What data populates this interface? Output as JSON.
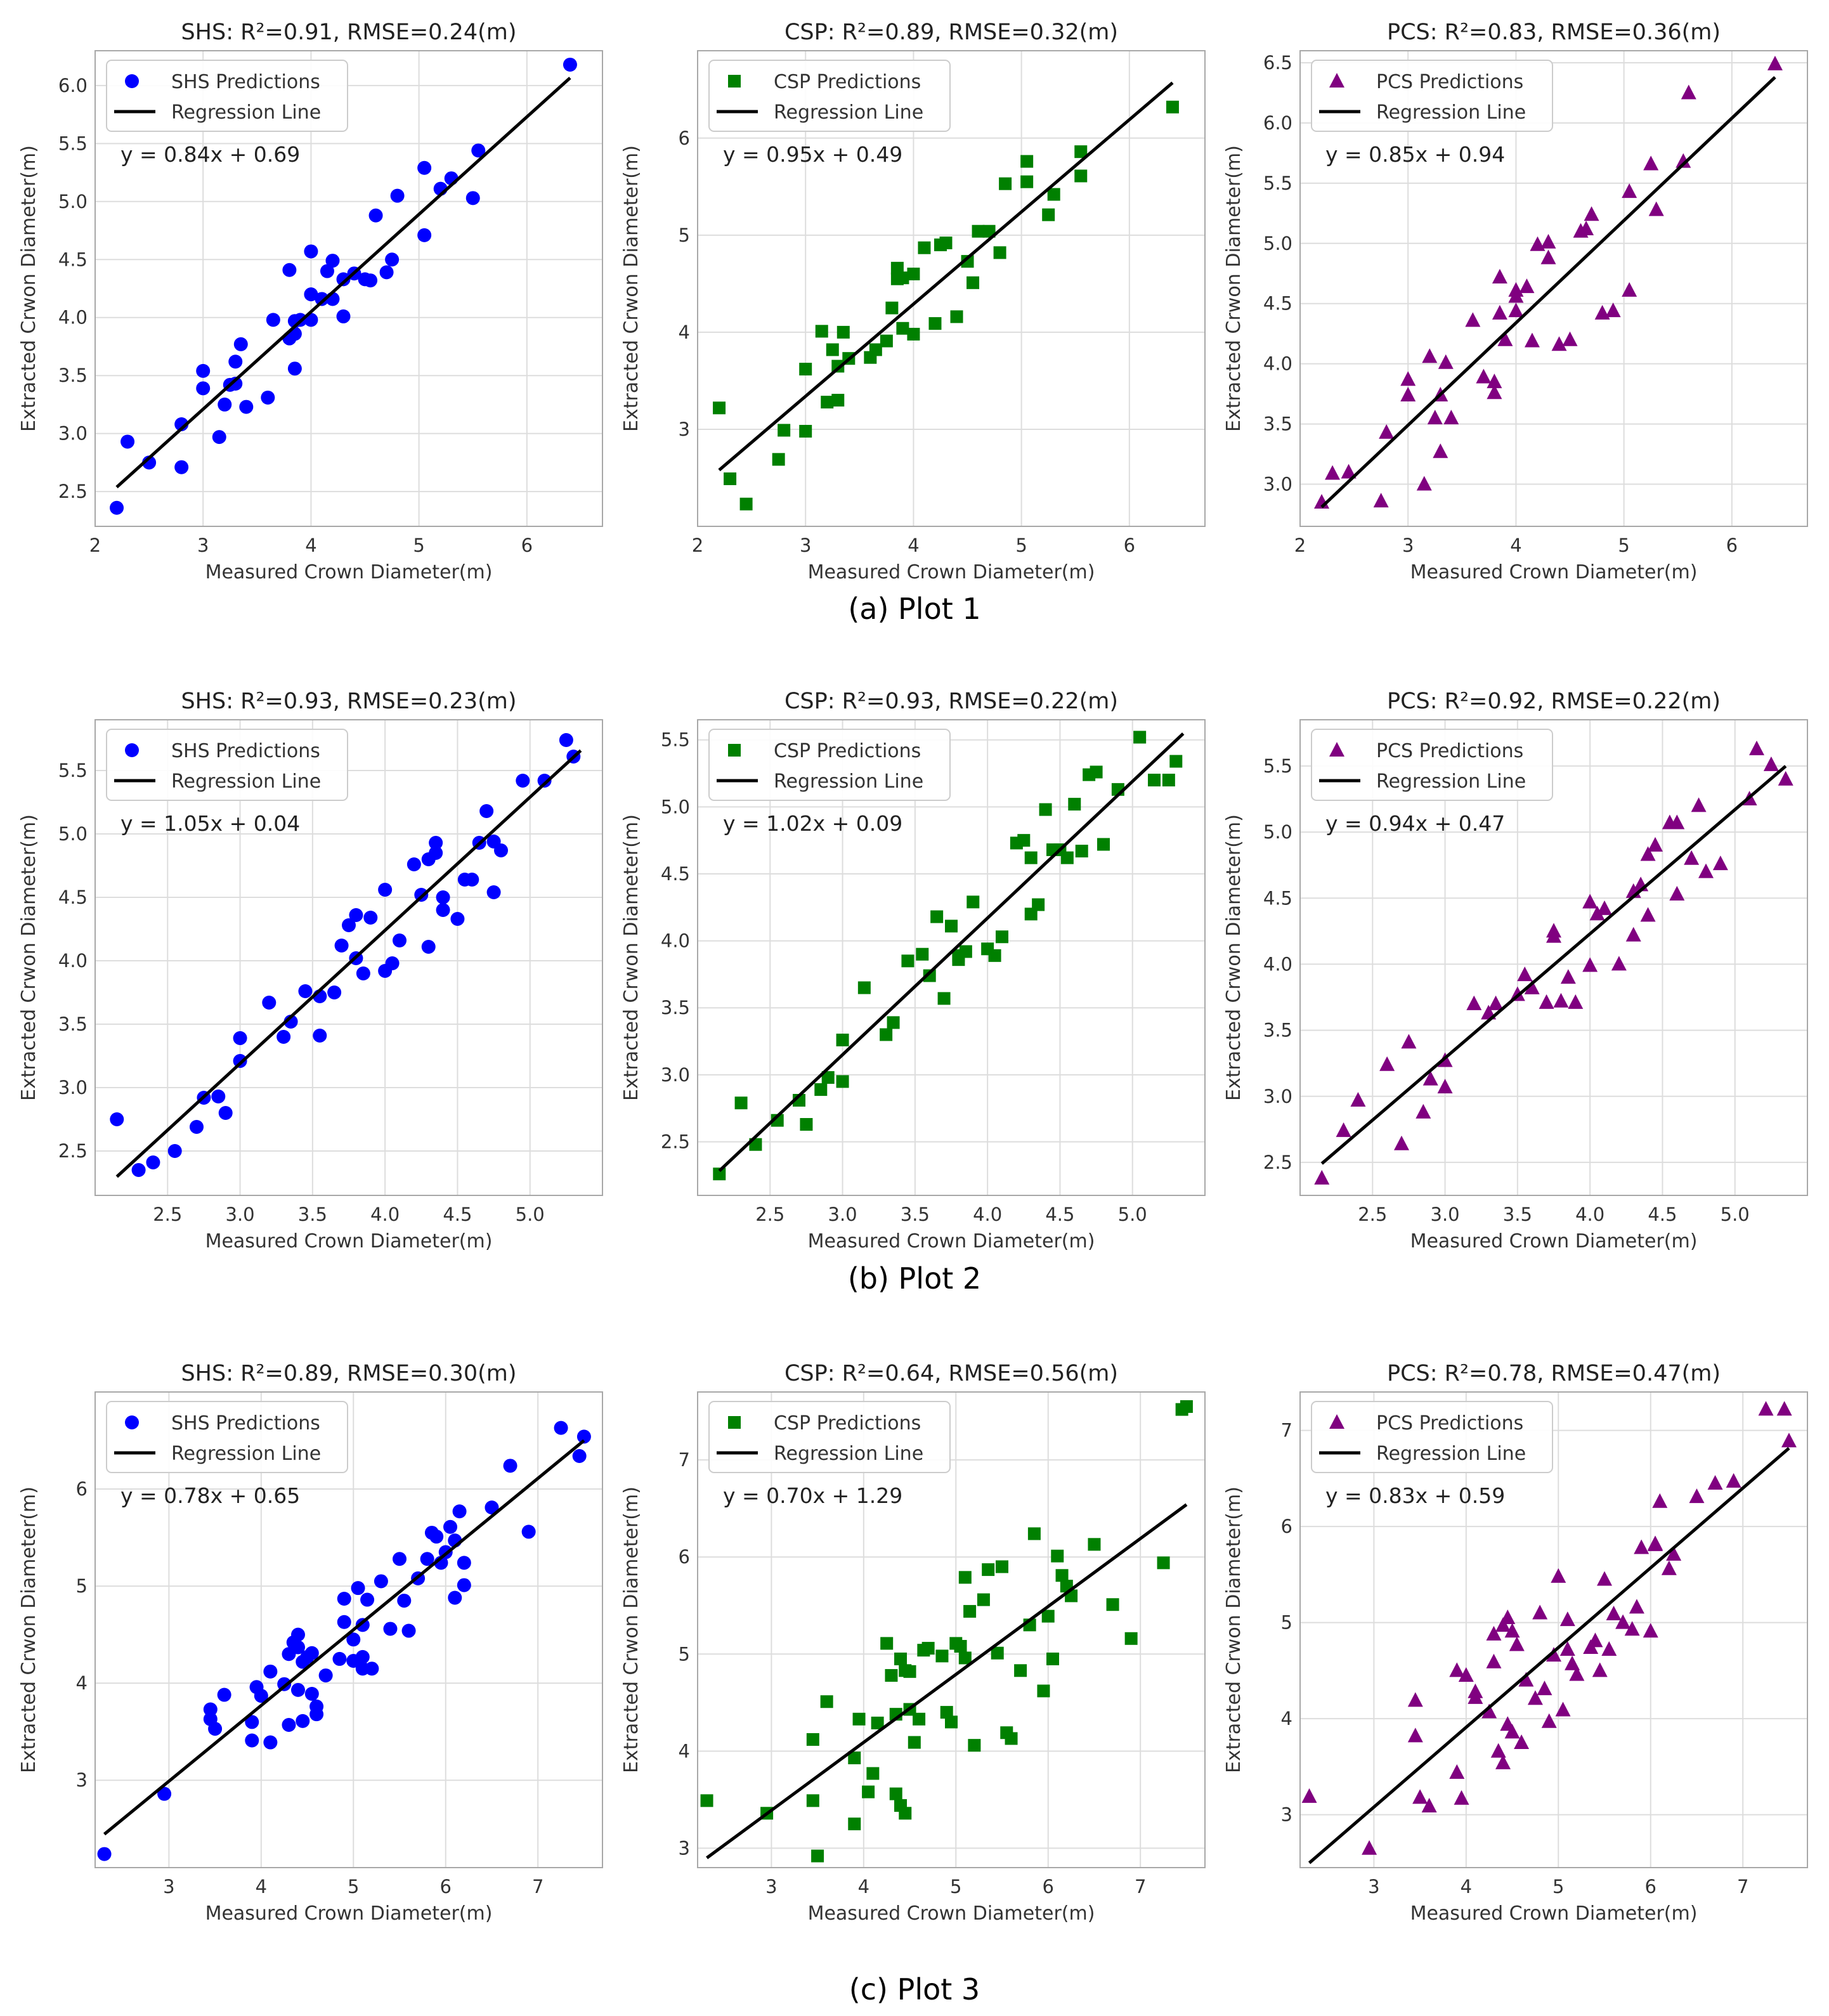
{
  "figure": {
    "axis_xlabel": "Measured Crown Diameter(m)",
    "axis_ylabel": "Extracted Crwon Diameter(m)",
    "regression_label": "Regression Line",
    "captions": [
      "(a) Plot 1",
      "(b) Plot 2",
      "(c) Plot 3"
    ]
  },
  "colors": {
    "SHS": "#0000ff",
    "CSP": "#008000",
    "PCS": "#800080",
    "line": "#000000",
    "grid": "#dddddd",
    "frame": "#a8a8a8"
  },
  "chart_data": [
    {
      "type": "scatter",
      "method": "SHS",
      "plot": 1,
      "title": "SHS: R²=0.91, RMSE=0.24(m)",
      "legend": "SHS Predictions",
      "equation": "y = 0.84x + 0.69",
      "slope": 0.84,
      "intercept": 0.69,
      "marker": "circle",
      "xlim": [
        2,
        6.7
      ],
      "ylim": [
        2.2,
        6.3
      ],
      "xticks": [
        "2",
        "3",
        "4",
        "5",
        "6"
      ],
      "yticks": [
        "2.5",
        "3.0",
        "3.5",
        "4.0",
        "4.5",
        "5.0",
        "5.5",
        "6.0"
      ],
      "line_x": [
        2.2,
        6.4
      ],
      "x": [
        2.2,
        2.3,
        2.5,
        2.8,
        2.8,
        3.0,
        3.0,
        3.15,
        3.2,
        3.25,
        3.3,
        3.3,
        3.35,
        3.4,
        3.6,
        3.65,
        3.8,
        3.8,
        3.85,
        3.85,
        3.85,
        3.9,
        4.0,
        4.0,
        4.0,
        4.1,
        4.15,
        4.2,
        4.2,
        4.3,
        4.3,
        4.4,
        4.5,
        4.55,
        4.6,
        4.7,
        4.75,
        4.8,
        5.05,
        5.05,
        5.2,
        5.3,
        5.5,
        5.55,
        6.4
      ],
      "y": [
        2.36,
        2.93,
        2.75,
        3.08,
        2.71,
        3.54,
        3.39,
        2.97,
        3.25,
        3.42,
        3.43,
        3.62,
        3.77,
        3.23,
        3.31,
        3.98,
        3.82,
        4.41,
        3.97,
        3.56,
        3.86,
        3.98,
        4.57,
        4.2,
        3.98,
        4.16,
        4.4,
        4.49,
        4.16,
        4.33,
        4.01,
        4.38,
        4.33,
        4.32,
        4.88,
        4.39,
        4.5,
        5.05,
        5.29,
        4.71,
        5.11,
        5.2,
        5.03,
        5.44,
        6.18
      ]
    },
    {
      "type": "scatter",
      "method": "CSP",
      "plot": 1,
      "title": "CSP: R²=0.89, RMSE=0.32(m)",
      "legend": "CSP Predictions",
      "equation": "y = 0.95x + 0.49",
      "slope": 0.95,
      "intercept": 0.49,
      "marker": "square",
      "xlim": [
        2,
        6.7
      ],
      "ylim": [
        2.0,
        6.9
      ],
      "xticks": [
        "2",
        "3",
        "4",
        "5",
        "6"
      ],
      "yticks": [
        "3",
        "4",
        "5",
        "6"
      ],
      "line_x": [
        2.2,
        6.4
      ],
      "x": [
        2.2,
        2.3,
        2.45,
        2.75,
        2.8,
        3.0,
        3.0,
        3.15,
        3.2,
        3.25,
        3.3,
        3.3,
        3.35,
        3.4,
        3.6,
        3.65,
        3.75,
        3.8,
        3.85,
        3.85,
        3.9,
        3.9,
        4.0,
        4.0,
        4.1,
        4.2,
        4.25,
        4.3,
        4.4,
        4.5,
        4.55,
        4.6,
        4.7,
        4.8,
        4.85,
        5.05,
        5.05,
        5.25,
        5.3,
        5.55,
        5.55,
        6.4
      ],
      "y": [
        3.22,
        2.49,
        2.23,
        2.69,
        2.99,
        3.62,
        2.98,
        4.01,
        3.28,
        3.82,
        3.3,
        3.65,
        4.0,
        3.73,
        3.74,
        3.82,
        3.91,
        4.25,
        4.66,
        4.55,
        4.04,
        4.56,
        3.98,
        4.6,
        4.87,
        4.09,
        4.9,
        4.92,
        4.16,
        4.73,
        4.51,
        5.04,
        5.04,
        4.82,
        5.53,
        5.55,
        5.76,
        5.21,
        5.42,
        5.86,
        5.61,
        6.32
      ]
    },
    {
      "type": "scatter",
      "method": "PCS",
      "plot": 1,
      "title": "PCS: R²=0.83, RMSE=0.36(m)",
      "legend": "PCS Predictions",
      "equation": "y = 0.85x + 0.94",
      "slope": 0.85,
      "intercept": 0.94,
      "marker": "triangle",
      "xlim": [
        2,
        6.7
      ],
      "ylim": [
        2.65,
        6.6
      ],
      "xticks": [
        "2",
        "3",
        "4",
        "5",
        "6"
      ],
      "yticks": [
        "3.0",
        "3.5",
        "4.0",
        "4.5",
        "5.0",
        "5.5",
        "6.0",
        "6.5"
      ],
      "line_x": [
        2.2,
        6.4
      ],
      "x": [
        2.2,
        2.3,
        2.45,
        2.75,
        2.8,
        3.0,
        3.0,
        3.15,
        3.2,
        3.25,
        3.3,
        3.3,
        3.35,
        3.4,
        3.6,
        3.7,
        3.8,
        3.8,
        3.85,
        3.85,
        3.9,
        4.0,
        4.0,
        4.0,
        4.1,
        4.15,
        4.2,
        4.3,
        4.3,
        4.4,
        4.5,
        4.6,
        4.65,
        4.7,
        4.8,
        4.9,
        5.05,
        5.05,
        5.25,
        5.3,
        5.55,
        5.6,
        6.4
      ],
      "y": [
        2.85,
        3.09,
        3.1,
        2.86,
        3.43,
        3.87,
        3.74,
        3.0,
        4.06,
        3.55,
        3.74,
        3.27,
        4.01,
        3.55,
        4.36,
        3.89,
        3.76,
        3.85,
        4.42,
        4.72,
        4.2,
        4.44,
        4.61,
        4.56,
        4.64,
        4.19,
        4.99,
        5.01,
        4.88,
        4.16,
        4.2,
        5.1,
        5.12,
        5.24,
        4.42,
        4.44,
        5.43,
        4.61,
        5.66,
        5.28,
        5.68,
        6.25,
        6.49
      ]
    },
    {
      "type": "scatter",
      "method": "SHS",
      "plot": 2,
      "title": "SHS: R²=0.93, RMSE=0.23(m)",
      "legend": "SHS Predictions",
      "equation": "y = 1.05x + 0.04",
      "slope": 1.05,
      "intercept": 0.04,
      "marker": "circle",
      "xlim": [
        2.0,
        5.5
      ],
      "ylim": [
        2.15,
        5.9
      ],
      "xticks": [
        "2.5",
        "3.0",
        "3.5",
        "4.0",
        "4.5",
        "5.0"
      ],
      "yticks": [
        "2.5",
        "3.0",
        "3.5",
        "4.0",
        "4.5",
        "5.0",
        "5.5"
      ],
      "line_x": [
        2.15,
        5.35
      ],
      "x": [
        2.15,
        2.3,
        2.4,
        2.55,
        2.7,
        2.75,
        2.85,
        2.9,
        3.0,
        3.0,
        3.2,
        3.3,
        3.35,
        3.45,
        3.55,
        3.55,
        3.65,
        3.7,
        3.75,
        3.8,
        3.8,
        3.85,
        3.9,
        4.0,
        4.0,
        4.05,
        4.1,
        4.2,
        4.25,
        4.3,
        4.3,
        4.35,
        4.35,
        4.4,
        4.4,
        4.5,
        4.55,
        4.6,
        4.65,
        4.7,
        4.75,
        4.75,
        4.8,
        4.95,
        5.1,
        5.25,
        5.3
      ],
      "y": [
        2.75,
        2.35,
        2.41,
        2.5,
        2.69,
        2.92,
        2.93,
        2.8,
        3.39,
        3.21,
        3.67,
        3.4,
        3.52,
        3.76,
        3.72,
        3.41,
        3.75,
        4.12,
        4.28,
        4.02,
        4.36,
        3.9,
        4.34,
        3.92,
        4.56,
        3.98,
        4.16,
        4.76,
        4.52,
        4.11,
        4.8,
        4.93,
        4.85,
        4.5,
        4.4,
        4.33,
        4.64,
        4.64,
        4.93,
        5.18,
        4.54,
        4.94,
        4.87,
        5.42,
        5.42,
        5.74,
        5.61
      ]
    },
    {
      "type": "scatter",
      "method": "CSP",
      "plot": 2,
      "title": "CSP: R²=0.93, RMSE=0.22(m)",
      "legend": "CSP Predictions",
      "equation": "y = 1.02x + 0.09",
      "slope": 1.02,
      "intercept": 0.09,
      "marker": "square",
      "xlim": [
        2.0,
        5.5
      ],
      "ylim": [
        2.1,
        5.65
      ],
      "xticks": [
        "2.5",
        "3.0",
        "3.5",
        "4.0",
        "4.5",
        "5.0"
      ],
      "yticks": [
        "2.5",
        "3.0",
        "3.5",
        "4.0",
        "4.5",
        "5.0",
        "5.5"
      ],
      "line_x": [
        2.15,
        5.35
      ],
      "x": [
        2.15,
        2.3,
        2.4,
        2.55,
        2.7,
        2.75,
        2.85,
        2.9,
        3.0,
        3.0,
        3.15,
        3.3,
        3.35,
        3.45,
        3.55,
        3.6,
        3.65,
        3.7,
        3.75,
        3.8,
        3.8,
        3.85,
        3.9,
        4.0,
        4.05,
        4.1,
        4.2,
        4.25,
        4.3,
        4.3,
        4.35,
        4.4,
        4.45,
        4.5,
        4.55,
        4.6,
        4.65,
        4.7,
        4.75,
        4.8,
        4.9,
        5.05,
        5.15,
        5.25,
        5.3
      ],
      "y": [
        2.26,
        2.79,
        2.48,
        2.66,
        2.81,
        2.63,
        2.89,
        2.98,
        2.95,
        3.26,
        3.65,
        3.3,
        3.39,
        3.85,
        3.9,
        3.74,
        4.18,
        3.57,
        4.11,
        3.86,
        3.89,
        3.92,
        4.29,
        3.94,
        3.89,
        4.03,
        4.73,
        4.75,
        4.2,
        4.62,
        4.27,
        4.98,
        4.68,
        4.68,
        4.62,
        5.02,
        4.67,
        5.24,
        5.26,
        4.72,
        5.13,
        5.52,
        5.2,
        5.2,
        5.34
      ]
    },
    {
      "type": "scatter",
      "method": "PCS",
      "plot": 2,
      "title": "PCS: R²=0.92, RMSE=0.22(m)",
      "legend": "PCS Predictions",
      "equation": "y = 0.94x + 0.47",
      "slope": 0.94,
      "intercept": 0.47,
      "marker": "triangle",
      "xlim": [
        2.0,
        5.5
      ],
      "ylim": [
        2.25,
        5.85
      ],
      "xticks": [
        "2.5",
        "3.0",
        "3.5",
        "4.0",
        "4.5",
        "5.0"
      ],
      "yticks": [
        "2.5",
        "3.0",
        "3.5",
        "4.0",
        "4.5",
        "5.0",
        "5.5"
      ],
      "line_x": [
        2.15,
        5.35
      ],
      "x": [
        2.15,
        2.3,
        2.4,
        2.6,
        2.7,
        2.75,
        2.85,
        2.9,
        3.0,
        3.0,
        3.2,
        3.3,
        3.35,
        3.5,
        3.55,
        3.6,
        3.7,
        3.75,
        3.75,
        3.8,
        3.85,
        3.9,
        4.0,
        4.0,
        4.05,
        4.1,
        4.2,
        4.3,
        4.3,
        4.35,
        4.4,
        4.4,
        4.45,
        4.55,
        4.6,
        4.6,
        4.7,
        4.75,
        4.8,
        4.9,
        5.1,
        5.15,
        5.25,
        5.35
      ],
      "y": [
        2.38,
        2.74,
        2.97,
        3.24,
        2.64,
        3.41,
        2.88,
        3.13,
        3.27,
        3.07,
        3.7,
        3.63,
        3.7,
        3.77,
        3.92,
        3.82,
        3.71,
        4.21,
        4.25,
        3.72,
        3.9,
        3.71,
        4.47,
        3.99,
        4.38,
        4.42,
        4.0,
        4.22,
        4.55,
        4.6,
        4.83,
        4.37,
        4.9,
        5.07,
        5.07,
        4.53,
        4.8,
        5.2,
        4.7,
        4.76,
        5.25,
        5.63,
        5.51,
        5.4
      ]
    },
    {
      "type": "scatter",
      "method": "SHS",
      "plot": 3,
      "title": "SHS: R²=0.89, RMSE=0.30(m)",
      "legend": "SHS Predictions",
      "equation": "y = 0.78x + 0.65",
      "slope": 0.78,
      "intercept": 0.65,
      "marker": "circle",
      "xlim": [
        2.2,
        7.7
      ],
      "ylim": [
        2.1,
        7.0
      ],
      "xticks": [
        "3",
        "4",
        "5",
        "6",
        "7"
      ],
      "yticks": [
        "3",
        "4",
        "5",
        "6"
      ],
      "line_x": [
        2.3,
        7.5
      ],
      "x": [
        2.3,
        2.95,
        3.45,
        3.45,
        3.5,
        3.6,
        3.9,
        3.9,
        3.95,
        4.0,
        4.1,
        4.1,
        4.25,
        4.3,
        4.3,
        4.35,
        4.4,
        4.4,
        4.4,
        4.45,
        4.45,
        4.5,
        4.55,
        4.55,
        4.6,
        4.6,
        4.7,
        4.85,
        4.9,
        4.9,
        5.0,
        5.0,
        5.05,
        5.1,
        5.1,
        5.1,
        5.15,
        5.2,
        5.3,
        5.4,
        5.5,
        5.55,
        5.6,
        5.7,
        5.8,
        5.85,
        5.9,
        5.95,
        6.0,
        6.05,
        6.1,
        6.1,
        6.15,
        6.2,
        6.2,
        6.5,
        6.7,
        6.9,
        7.25,
        7.45,
        7.5
      ],
      "y": [
        2.24,
        2.86,
        3.73,
        3.63,
        3.53,
        3.88,
        3.41,
        3.6,
        3.96,
        3.87,
        3.39,
        4.12,
        3.99,
        3.57,
        4.3,
        4.42,
        3.93,
        4.5,
        4.37,
        3.61,
        4.22,
        4.27,
        3.89,
        4.31,
        3.76,
        3.68,
        4.08,
        4.25,
        4.63,
        4.87,
        4.45,
        4.23,
        4.98,
        4.6,
        4.15,
        4.27,
        4.86,
        4.15,
        5.05,
        4.56,
        5.28,
        4.85,
        4.54,
        5.08,
        5.28,
        5.55,
        5.51,
        5.24,
        5.35,
        5.61,
        4.88,
        5.47,
        5.77,
        5.01,
        5.24,
        5.81,
        6.24,
        5.56,
        6.63,
        6.34,
        6.54
      ]
    },
    {
      "type": "scatter",
      "method": "CSP",
      "plot": 3,
      "title": "CSP: R²=0.64, RMSE=0.56(m)",
      "legend": "CSP Predictions",
      "equation": "y = 0.70x + 1.29",
      "slope": 0.7,
      "intercept": 1.29,
      "marker": "square",
      "xlim": [
        2.2,
        7.7
      ],
      "ylim": [
        2.8,
        7.7
      ],
      "xticks": [
        "3",
        "4",
        "5",
        "6",
        "7"
      ],
      "yticks": [
        "3",
        "4",
        "5",
        "6",
        "7"
      ],
      "line_x": [
        2.3,
        7.5
      ],
      "x": [
        2.3,
        2.95,
        3.45,
        3.45,
        3.5,
        3.6,
        3.9,
        3.9,
        3.95,
        4.05,
        4.1,
        4.15,
        4.25,
        4.3,
        4.35,
        4.35,
        4.4,
        4.4,
        4.45,
        4.45,
        4.5,
        4.5,
        4.55,
        4.6,
        4.65,
        4.7,
        4.85,
        4.9,
        4.95,
        5.0,
        5.05,
        5.1,
        5.1,
        5.15,
        5.2,
        5.3,
        5.35,
        5.45,
        5.5,
        5.55,
        5.6,
        5.7,
        5.8,
        5.85,
        5.95,
        6.0,
        6.05,
        6.1,
        6.15,
        6.2,
        6.25,
        6.5,
        6.7,
        6.9,
        7.25,
        7.45,
        7.5
      ],
      "y": [
        3.49,
        3.36,
        3.49,
        4.12,
        2.92,
        4.51,
        3.25,
        3.93,
        4.33,
        3.58,
        3.77,
        4.29,
        5.11,
        4.78,
        3.56,
        4.38,
        3.44,
        4.95,
        3.36,
        4.83,
        4.82,
        4.43,
        4.09,
        4.33,
        5.04,
        5.06,
        4.98,
        4.4,
        4.3,
        5.11,
        5.08,
        5.79,
        4.96,
        5.44,
        4.06,
        5.56,
        5.87,
        5.01,
        5.9,
        4.19,
        4.13,
        4.83,
        5.3,
        6.24,
        4.62,
        5.39,
        4.95,
        6.01,
        5.81,
        5.7,
        5.6,
        6.13,
        5.51,
        5.16,
        5.94,
        7.52,
        7.55
      ]
    },
    {
      "type": "scatter",
      "method": "PCS",
      "plot": 3,
      "title": "PCS: R²=0.78, RMSE=0.47(m)",
      "legend": "PCS Predictions",
      "equation": "y = 0.83x + 0.59",
      "slope": 0.83,
      "intercept": 0.59,
      "marker": "triangle",
      "xlim": [
        2.2,
        7.7
      ],
      "ylim": [
        2.45,
        7.4
      ],
      "xticks": [
        "3",
        "4",
        "5",
        "6",
        "7"
      ],
      "yticks": [
        "3",
        "4",
        "5",
        "6",
        "7"
      ],
      "line_x": [
        2.3,
        7.5
      ],
      "x": [
        2.3,
        2.95,
        3.45,
        3.45,
        3.5,
        3.6,
        3.9,
        3.9,
        3.95,
        4.0,
        4.1,
        4.1,
        4.25,
        4.3,
        4.3,
        4.35,
        4.4,
        4.4,
        4.45,
        4.45,
        4.5,
        4.5,
        4.55,
        4.6,
        4.65,
        4.75,
        4.8,
        4.85,
        4.9,
        4.95,
        5.0,
        5.05,
        5.1,
        5.1,
        5.15,
        5.2,
        5.35,
        5.4,
        5.45,
        5.5,
        5.55,
        5.6,
        5.7,
        5.8,
        5.85,
        5.9,
        6.0,
        6.05,
        6.05,
        6.1,
        6.2,
        6.25,
        6.5,
        6.7,
        6.9,
        7.25,
        7.45,
        7.5
      ],
      "y": [
        3.19,
        2.65,
        4.19,
        3.82,
        3.18,
        3.09,
        3.44,
        4.5,
        3.17,
        4.45,
        4.28,
        4.22,
        4.07,
        4.88,
        4.59,
        3.66,
        3.54,
        4.97,
        5.05,
        3.94,
        3.86,
        4.91,
        4.77,
        3.75,
        4.4,
        4.21,
        5.1,
        4.31,
        3.97,
        4.66,
        5.48,
        4.09,
        5.03,
        4.72,
        4.57,
        4.46,
        4.74,
        4.81,
        4.5,
        5.45,
        4.72,
        5.09,
        5.0,
        4.93,
        5.16,
        5.78,
        4.91,
        5.81,
        5.82,
        6.26,
        5.56,
        5.71,
        6.31,
        6.45,
        6.47,
        7.22,
        7.22,
        6.89
      ]
    }
  ]
}
